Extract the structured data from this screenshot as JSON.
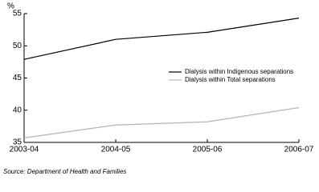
{
  "chart_data": {
    "type": "line",
    "y_label": "%",
    "categories": [
      "2003-04",
      "2004-05",
      "2005-06",
      "2006-07"
    ],
    "series": [
      {
        "name": "Dialysis within Indigenous separations",
        "color": "#000000",
        "values": [
          47.9,
          51.0,
          52.1,
          54.3
        ]
      },
      {
        "name": "Dialysis within Total separations",
        "color": "#b4b4b4",
        "values": [
          35.7,
          37.7,
          38.2,
          40.4
        ]
      }
    ],
    "ylim": [
      35,
      55
    ],
    "yticks": [
      35,
      40,
      45,
      50,
      55
    ],
    "source": "Source: Department of Health and Families"
  }
}
